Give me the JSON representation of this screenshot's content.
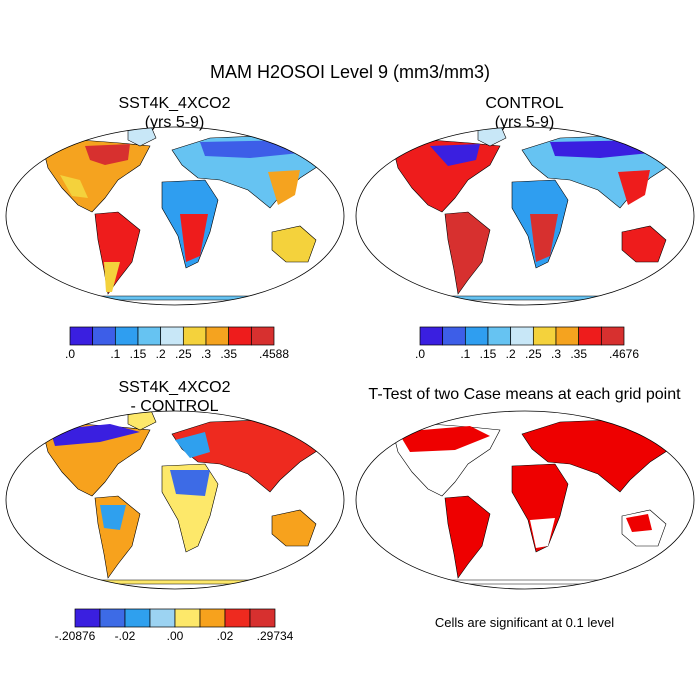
{
  "figure_title": "MAM H2OSOI Level 9 (mm3/mm3)",
  "panels": [
    {
      "id": "case",
      "title_line1": "SST4K_4XCO2",
      "title_line2": "(yrs 5-9)"
    },
    {
      "id": "control",
      "title_line1": "CONTROL",
      "title_line2": "(yrs 5-9)"
    },
    {
      "id": "diff",
      "title_line1": "SST4K_4XCO2",
      "title_line2": "- CONTROL"
    },
    {
      "id": "ttest",
      "title_line1": "T-Test of two Case means at each grid point"
    }
  ],
  "colorbars": {
    "case": {
      "colors": [
        "#3a1fe0",
        "#3d5ee8",
        "#2f9ef0",
        "#66c3f2",
        "#c8e7f7",
        "#f4d23c",
        "#f5a31f",
        "#ee1c1c",
        "#d7302f"
      ],
      "labels": [
        ".0",
        ".1",
        ".15",
        ".2",
        ".25",
        ".3",
        ".35",
        ".4588"
      ]
    },
    "control": {
      "colors": [
        "#3a1fe0",
        "#3d5ee8",
        "#2f9ef0",
        "#66c3f2",
        "#c8e7f7",
        "#f4d23c",
        "#f5a31f",
        "#ee1c1c",
        "#d7302f"
      ],
      "labels": [
        ".0",
        ".1",
        ".15",
        ".2",
        ".25",
        ".3",
        ".35",
        ".4676"
      ]
    },
    "diff": {
      "colors": [
        "#3a1fe0",
        "#3d6be6",
        "#2fa0ee",
        "#9cd3f2",
        "#fde86a",
        "#f7a21d",
        "#ee2a1f",
        "#d7302f"
      ],
      "labels": [
        "-.20876",
        "-.02",
        ".00",
        ".02",
        ".29734"
      ]
    }
  },
  "significance_note": "Cells are significant at 0.1 level",
  "colors": {
    "significant": "#ee0000",
    "outline": "#000000"
  }
}
